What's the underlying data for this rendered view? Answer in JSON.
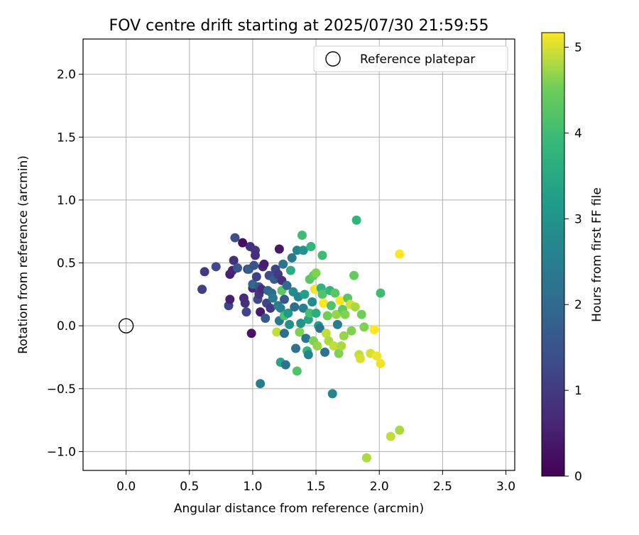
{
  "chart_data": {
    "type": "scatter",
    "title": "FOV centre drift starting at 2025/07/30 21:59:55",
    "xlabel": "Angular distance from reference (arcmin)",
    "ylabel": "Rotation from reference (arcmin)",
    "xlim": [
      -0.34,
      3.07
    ],
    "ylim": [
      -1.15,
      2.28
    ],
    "xticks": [
      0.0,
      0.5,
      1.0,
      1.5,
      2.0,
      2.5,
      3.0
    ],
    "xtick_labels": [
      "0.0",
      "0.5",
      "1.0",
      "1.5",
      "2.0",
      "2.5",
      "3.0"
    ],
    "yticks": [
      -1.0,
      -0.5,
      0.0,
      0.5,
      1.0,
      1.5,
      2.0
    ],
    "ytick_labels": [
      "−1.0",
      "−0.5",
      "0.0",
      "0.5",
      "1.0",
      "1.5",
      "2.0"
    ],
    "grid": true,
    "legend": {
      "placement": "top-right",
      "entries": [
        {
          "label": "Reference platepar",
          "marker": "open-circle"
        }
      ]
    },
    "reference_point": {
      "x": 0.0,
      "y": 0.0
    },
    "colorbar": {
      "label": "Hours from first FF file",
      "colormap": "viridis",
      "range": [
        0,
        5.17
      ],
      "ticks": [
        0,
        1,
        2,
        3,
        4,
        5
      ],
      "tick_labels": [
        "0",
        "1",
        "2",
        "3",
        "4",
        "5"
      ]
    },
    "points": [
      {
        "x": 0.6,
        "y": 0.29,
        "t": 1.1
      },
      {
        "x": 0.62,
        "y": 0.43,
        "t": 1.0
      },
      {
        "x": 0.71,
        "y": 0.47,
        "t": 1.3
      },
      {
        "x": 0.81,
        "y": 0.16,
        "t": 1.2
      },
      {
        "x": 0.82,
        "y": 0.41,
        "t": 0.5
      },
      {
        "x": 0.82,
        "y": 0.21,
        "t": 0.5
      },
      {
        "x": 0.84,
        "y": 0.44,
        "t": 0.6
      },
      {
        "x": 0.85,
        "y": 0.52,
        "t": 0.8
      },
      {
        "x": 0.86,
        "y": 0.7,
        "t": 1.4
      },
      {
        "x": 0.88,
        "y": 0.46,
        "t": 1.6
      },
      {
        "x": 0.92,
        "y": 0.66,
        "t": 0.2
      },
      {
        "x": 0.93,
        "y": 0.22,
        "t": 0.7
      },
      {
        "x": 0.94,
        "y": 0.18,
        "t": 0.8
      },
      {
        "x": 0.95,
        "y": 0.11,
        "t": 1.2
      },
      {
        "x": 0.96,
        "y": 0.45,
        "t": 0.9
      },
      {
        "x": 0.97,
        "y": 0.45,
        "t": 1.8
      },
      {
        "x": 0.98,
        "y": 0.63,
        "t": 0.8
      },
      {
        "x": 0.99,
        "y": -0.06,
        "t": 0.3
      },
      {
        "x": 1.0,
        "y": 0.3,
        "t": 0.6
      },
      {
        "x": 1.0,
        "y": 0.33,
        "t": 1.9
      },
      {
        "x": 1.01,
        "y": 0.48,
        "t": 1.5
      },
      {
        "x": 1.02,
        "y": 0.6,
        "t": 0.9
      },
      {
        "x": 1.02,
        "y": 0.56,
        "t": 0.8
      },
      {
        "x": 1.03,
        "y": 0.39,
        "t": 1.1
      },
      {
        "x": 1.04,
        "y": 0.21,
        "t": 1.3
      },
      {
        "x": 1.05,
        "y": 0.25,
        "t": 0.9
      },
      {
        "x": 1.05,
        "y": 0.31,
        "t": 1.6
      },
      {
        "x": 1.06,
        "y": 0.11,
        "t": 0.4
      },
      {
        "x": 1.06,
        "y": -0.46,
        "t": 2.4
      },
      {
        "x": 1.07,
        "y": 0.29,
        "t": 0.7
      },
      {
        "x": 1.08,
        "y": 0.47,
        "t": 0.6
      },
      {
        "x": 1.09,
        "y": 0.49,
        "t": 0.5
      },
      {
        "x": 1.1,
        "y": 0.06,
        "t": 1.6
      },
      {
        "x": 1.11,
        "y": 0.18,
        "t": 1.2
      },
      {
        "x": 1.12,
        "y": 0.28,
        "t": 1.9
      },
      {
        "x": 1.13,
        "y": 0.4,
        "t": 1.3
      },
      {
        "x": 1.14,
        "y": 0.14,
        "t": 1.0
      },
      {
        "x": 1.15,
        "y": 0.26,
        "t": 2.0
      },
      {
        "x": 1.16,
        "y": 0.22,
        "t": 2.3
      },
      {
        "x": 1.17,
        "y": 0.37,
        "t": 1.7
      },
      {
        "x": 1.18,
        "y": 0.45,
        "t": 1.2
      },
      {
        "x": 1.19,
        "y": -0.05,
        "t": 4.9
      },
      {
        "x": 1.2,
        "y": 0.16,
        "t": 2.5
      },
      {
        "x": 1.2,
        "y": 0.41,
        "t": 1.0
      },
      {
        "x": 1.21,
        "y": 0.04,
        "t": 2.3
      },
      {
        "x": 1.21,
        "y": 0.61,
        "t": 0.4
      },
      {
        "x": 1.22,
        "y": -0.29,
        "t": 3.4
      },
      {
        "x": 1.22,
        "y": 0.14,
        "t": 2.6
      },
      {
        "x": 1.23,
        "y": 0.36,
        "t": 0.8
      },
      {
        "x": 1.23,
        "y": 0.28,
        "t": 4.3
      },
      {
        "x": 1.24,
        "y": 0.49,
        "t": 2.2
      },
      {
        "x": 1.25,
        "y": 0.08,
        "t": 4.1
      },
      {
        "x": 1.25,
        "y": 0.21,
        "t": 1.6
      },
      {
        "x": 1.25,
        "y": -0.06,
        "t": 2.1
      },
      {
        "x": 1.26,
        "y": -0.31,
        "t": 2.2
      },
      {
        "x": 1.27,
        "y": 0.32,
        "t": 2.0
      },
      {
        "x": 1.28,
        "y": 0.1,
        "t": 3.1
      },
      {
        "x": 1.29,
        "y": 0.01,
        "t": 2.9
      },
      {
        "x": 1.3,
        "y": 0.44,
        "t": 3.6
      },
      {
        "x": 1.31,
        "y": 0.54,
        "t": 2.3
      },
      {
        "x": 1.32,
        "y": 0.27,
        "t": 2.8
      },
      {
        "x": 1.33,
        "y": 0.15,
        "t": 2.1
      },
      {
        "x": 1.34,
        "y": -0.18,
        "t": 2.2
      },
      {
        "x": 1.35,
        "y": 0.6,
        "t": 2.6
      },
      {
        "x": 1.35,
        "y": -0.36,
        "t": 4.2
      },
      {
        "x": 1.36,
        "y": 0.23,
        "t": 2.7
      },
      {
        "x": 1.37,
        "y": -0.05,
        "t": 4.6
      },
      {
        "x": 1.38,
        "y": 0.02,
        "t": 3.0
      },
      {
        "x": 1.39,
        "y": 0.72,
        "t": 4.0
      },
      {
        "x": 1.4,
        "y": 0.6,
        "t": 3.0
      },
      {
        "x": 1.4,
        "y": 0.14,
        "t": 2.5
      },
      {
        "x": 1.41,
        "y": 0.25,
        "t": 3.3
      },
      {
        "x": 1.42,
        "y": -0.1,
        "t": 2.3
      },
      {
        "x": 1.43,
        "y": -0.2,
        "t": 3.8
      },
      {
        "x": 1.44,
        "y": -0.23,
        "t": 2.6
      },
      {
        "x": 1.44,
        "y": 0.05,
        "t": 3.4
      },
      {
        "x": 1.45,
        "y": 0.37,
        "t": 4.3
      },
      {
        "x": 1.45,
        "y": 0.1,
        "t": 4.1
      },
      {
        "x": 1.46,
        "y": 0.63,
        "t": 3.8
      },
      {
        "x": 1.47,
        "y": 0.19,
        "t": 2.8
      },
      {
        "x": 1.48,
        "y": 0.4,
        "t": 4.4
      },
      {
        "x": 1.48,
        "y": -0.12,
        "t": 4.6
      },
      {
        "x": 1.49,
        "y": 0.29,
        "t": 5.1
      },
      {
        "x": 1.5,
        "y": 0.42,
        "t": 4.6
      },
      {
        "x": 1.5,
        "y": 0.1,
        "t": 3.6
      },
      {
        "x": 1.51,
        "y": -0.16,
        "t": 4.7
      },
      {
        "x": 1.52,
        "y": 0.0,
        "t": 3.2
      },
      {
        "x": 1.53,
        "y": -0.02,
        "t": 2.2
      },
      {
        "x": 1.54,
        "y": 0.3,
        "t": 3.7
      },
      {
        "x": 1.55,
        "y": 0.56,
        "t": 4.0
      },
      {
        "x": 1.55,
        "y": 0.25,
        "t": 4.2
      },
      {
        "x": 1.56,
        "y": 0.18,
        "t": 5.2
      },
      {
        "x": 1.57,
        "y": -0.21,
        "t": 2.2
      },
      {
        "x": 1.58,
        "y": -0.06,
        "t": 4.9
      },
      {
        "x": 1.59,
        "y": 0.08,
        "t": 4.5
      },
      {
        "x": 1.6,
        "y": -0.12,
        "t": 4.8
      },
      {
        "x": 1.61,
        "y": 0.28,
        "t": 3.8
      },
      {
        "x": 1.62,
        "y": 0.16,
        "t": 4.2
      },
      {
        "x": 1.63,
        "y": -0.54,
        "t": 2.7
      },
      {
        "x": 1.64,
        "y": -0.16,
        "t": 4.9
      },
      {
        "x": 1.65,
        "y": 0.26,
        "t": 4.3
      },
      {
        "x": 1.66,
        "y": 0.09,
        "t": 4.7
      },
      {
        "x": 1.67,
        "y": 0.01,
        "t": 2.4
      },
      {
        "x": 1.68,
        "y": -0.22,
        "t": 4.6
      },
      {
        "x": 1.69,
        "y": 0.2,
        "t": 5.2
      },
      {
        "x": 1.7,
        "y": -0.16,
        "t": 4.8
      },
      {
        "x": 1.71,
        "y": 0.13,
        "t": 4.4
      },
      {
        "x": 1.72,
        "y": -0.08,
        "t": 4.7
      },
      {
        "x": 1.73,
        "y": 0.09,
        "t": 4.6
      },
      {
        "x": 1.75,
        "y": 0.22,
        "t": 4.3
      },
      {
        "x": 1.77,
        "y": 0.17,
        "t": 5.0
      },
      {
        "x": 1.78,
        "y": -0.04,
        "t": 4.6
      },
      {
        "x": 1.8,
        "y": 0.4,
        "t": 4.4
      },
      {
        "x": 1.81,
        "y": 0.15,
        "t": 4.8
      },
      {
        "x": 1.82,
        "y": 0.84,
        "t": 3.8
      },
      {
        "x": 1.84,
        "y": -0.23,
        "t": 4.9
      },
      {
        "x": 1.85,
        "y": -0.26,
        "t": 5.0
      },
      {
        "x": 1.86,
        "y": 0.09,
        "t": 4.5
      },
      {
        "x": 1.88,
        "y": -0.01,
        "t": 4.6
      },
      {
        "x": 1.9,
        "y": -1.05,
        "t": 4.8
      },
      {
        "x": 1.93,
        "y": -0.22,
        "t": 5.0
      },
      {
        "x": 1.96,
        "y": -0.03,
        "t": 5.2
      },
      {
        "x": 1.98,
        "y": -0.24,
        "t": 5.1
      },
      {
        "x": 2.01,
        "y": 0.26,
        "t": 4.0
      },
      {
        "x": 2.01,
        "y": -0.3,
        "t": 5.1
      },
      {
        "x": 2.09,
        "y": -0.88,
        "t": 4.9
      },
      {
        "x": 2.16,
        "y": 0.57,
        "t": 5.2
      },
      {
        "x": 2.16,
        "y": -0.83,
        "t": 4.8
      }
    ]
  }
}
